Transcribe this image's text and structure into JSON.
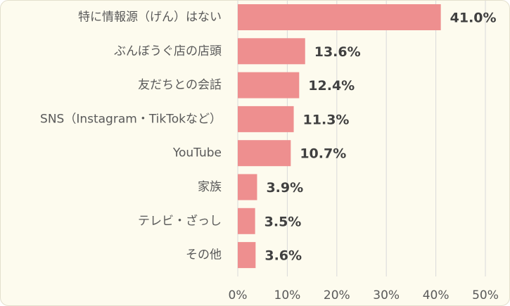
{
  "colors": {
    "bar": "#ee8f8f",
    "background": "#fdfbee",
    "grid": "#d9d9d9"
  },
  "chart_data": {
    "type": "bar",
    "orientation": "horizontal",
    "categories": [
      "特に情報源（げん）はない",
      "ぶんぼうぐ店の店頭",
      "友だちとの会話",
      "SNS（Instagram・TikTokなど）",
      "YouTube",
      "家族",
      "テレビ・ざっし",
      "その他"
    ],
    "values": [
      41.0,
      13.6,
      12.4,
      11.3,
      10.7,
      3.9,
      3.5,
      3.6
    ],
    "value_labels": [
      "41.0%",
      "13.6%",
      "12.4%",
      "11.3%",
      "10.7%",
      "3.9%",
      "3.5%",
      "3.6%"
    ],
    "xlim": [
      0,
      50
    ],
    "xticks": [
      0,
      10,
      20,
      30,
      40,
      50
    ],
    "xtick_labels": [
      "0%",
      "10%",
      "20%",
      "30%",
      "40%",
      "50%"
    ],
    "grid": true,
    "legend": "none"
  }
}
